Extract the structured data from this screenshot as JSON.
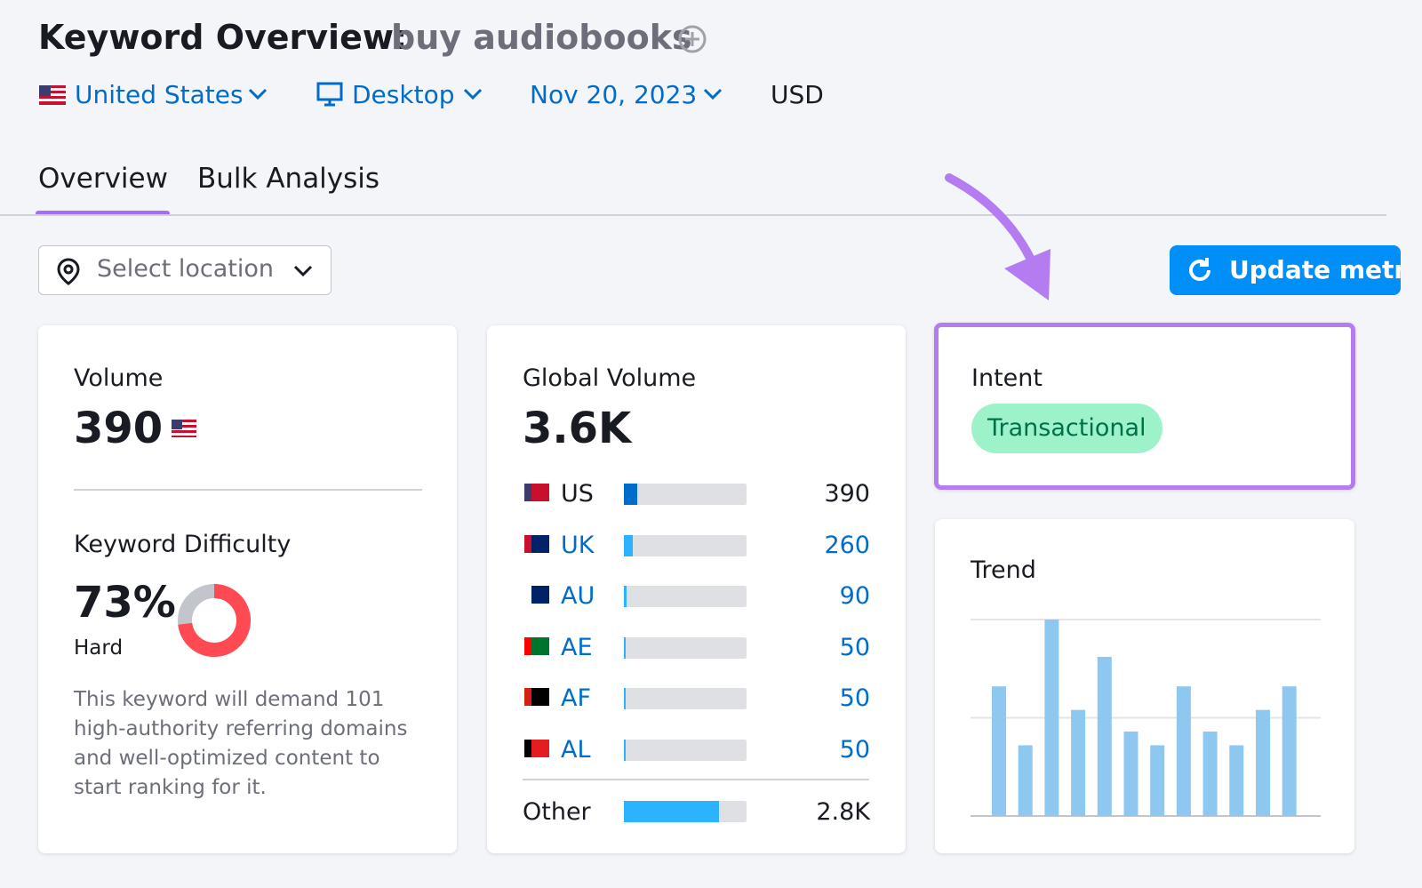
{
  "header": {
    "title": "Keyword Overview:",
    "keyword": "buy audiobooks",
    "database": "United States",
    "device": "Desktop",
    "date": "Nov 20, 2023",
    "currency": "USD"
  },
  "tabs": [
    "Overview",
    "Bulk Analysis"
  ],
  "location_placeholder": "Select location",
  "update_button": "Update metr",
  "volume": {
    "title": "Volume",
    "value": 390
  },
  "difficulty": {
    "title": "Keyword Difficulty",
    "value": 73,
    "label": "73%",
    "level": "Hard",
    "description": "This keyword will demand 101 high-authority referring domains and well-optimized content to start ranking for it."
  },
  "global_volume": {
    "title": "Global Volume",
    "value": 3600,
    "label": "3.6K",
    "countries": [
      {
        "code": "US",
        "value": 390
      },
      {
        "code": "UK",
        "value": 260
      },
      {
        "code": "AU",
        "value": 90
      },
      {
        "code": "AE",
        "value": 50
      },
      {
        "code": "AF",
        "value": 50
      },
      {
        "code": "AL",
        "value": 50
      }
    ],
    "other": {
      "name": "Other",
      "value": 2800,
      "label": "2.8K"
    }
  },
  "intent": {
    "title": "Intent",
    "value": "Transactional"
  },
  "trend": {
    "title": "Trend",
    "values": [
      0.66,
      0.36,
      1.0,
      0.54,
      0.81,
      0.43,
      0.36,
      0.66,
      0.43,
      0.36,
      0.54,
      0.66
    ],
    "ylim": [
      0,
      1
    ],
    "yticks": [
      0,
      0.5,
      1
    ]
  }
}
